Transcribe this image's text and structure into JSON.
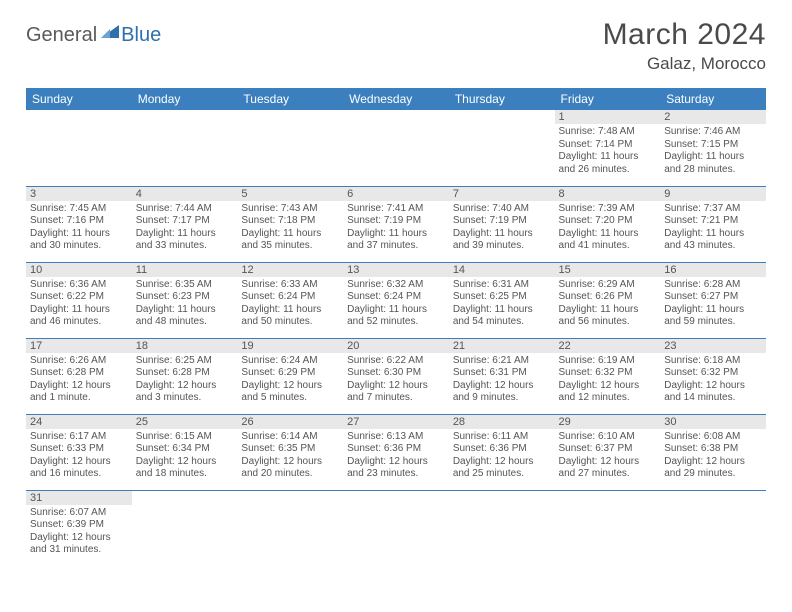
{
  "brand": {
    "part1": "General",
    "part2": "Blue"
  },
  "colors": {
    "header_bg": "#3b7fbf",
    "header_fg": "#ffffff",
    "daynum_bg": "#e8e8e8",
    "rule": "#3b7fbf",
    "body_text": "#555555",
    "logo_blue": "#2f6fab"
  },
  "title": "March 2024",
  "location": "Galaz, Morocco",
  "weekday_labels": [
    "Sunday",
    "Monday",
    "Tuesday",
    "Wednesday",
    "Thursday",
    "Friday",
    "Saturday"
  ],
  "weeks": [
    [
      null,
      null,
      null,
      null,
      null,
      {
        "d": "1",
        "sr": "7:48 AM",
        "ss": "7:14 PM",
        "dl": "11 hours and 26 minutes."
      },
      {
        "d": "2",
        "sr": "7:46 AM",
        "ss": "7:15 PM",
        "dl": "11 hours and 28 minutes."
      }
    ],
    [
      {
        "d": "3",
        "sr": "7:45 AM",
        "ss": "7:16 PM",
        "dl": "11 hours and 30 minutes."
      },
      {
        "d": "4",
        "sr": "7:44 AM",
        "ss": "7:17 PM",
        "dl": "11 hours and 33 minutes."
      },
      {
        "d": "5",
        "sr": "7:43 AM",
        "ss": "7:18 PM",
        "dl": "11 hours and 35 minutes."
      },
      {
        "d": "6",
        "sr": "7:41 AM",
        "ss": "7:19 PM",
        "dl": "11 hours and 37 minutes."
      },
      {
        "d": "7",
        "sr": "7:40 AM",
        "ss": "7:19 PM",
        "dl": "11 hours and 39 minutes."
      },
      {
        "d": "8",
        "sr": "7:39 AM",
        "ss": "7:20 PM",
        "dl": "11 hours and 41 minutes."
      },
      {
        "d": "9",
        "sr": "7:37 AM",
        "ss": "7:21 PM",
        "dl": "11 hours and 43 minutes."
      }
    ],
    [
      {
        "d": "10",
        "sr": "6:36 AM",
        "ss": "6:22 PM",
        "dl": "11 hours and 46 minutes."
      },
      {
        "d": "11",
        "sr": "6:35 AM",
        "ss": "6:23 PM",
        "dl": "11 hours and 48 minutes."
      },
      {
        "d": "12",
        "sr": "6:33 AM",
        "ss": "6:24 PM",
        "dl": "11 hours and 50 minutes."
      },
      {
        "d": "13",
        "sr": "6:32 AM",
        "ss": "6:24 PM",
        "dl": "11 hours and 52 minutes."
      },
      {
        "d": "14",
        "sr": "6:31 AM",
        "ss": "6:25 PM",
        "dl": "11 hours and 54 minutes."
      },
      {
        "d": "15",
        "sr": "6:29 AM",
        "ss": "6:26 PM",
        "dl": "11 hours and 56 minutes."
      },
      {
        "d": "16",
        "sr": "6:28 AM",
        "ss": "6:27 PM",
        "dl": "11 hours and 59 minutes."
      }
    ],
    [
      {
        "d": "17",
        "sr": "6:26 AM",
        "ss": "6:28 PM",
        "dl": "12 hours and 1 minute."
      },
      {
        "d": "18",
        "sr": "6:25 AM",
        "ss": "6:28 PM",
        "dl": "12 hours and 3 minutes."
      },
      {
        "d": "19",
        "sr": "6:24 AM",
        "ss": "6:29 PM",
        "dl": "12 hours and 5 minutes."
      },
      {
        "d": "20",
        "sr": "6:22 AM",
        "ss": "6:30 PM",
        "dl": "12 hours and 7 minutes."
      },
      {
        "d": "21",
        "sr": "6:21 AM",
        "ss": "6:31 PM",
        "dl": "12 hours and 9 minutes."
      },
      {
        "d": "22",
        "sr": "6:19 AM",
        "ss": "6:32 PM",
        "dl": "12 hours and 12 minutes."
      },
      {
        "d": "23",
        "sr": "6:18 AM",
        "ss": "6:32 PM",
        "dl": "12 hours and 14 minutes."
      }
    ],
    [
      {
        "d": "24",
        "sr": "6:17 AM",
        "ss": "6:33 PM",
        "dl": "12 hours and 16 minutes."
      },
      {
        "d": "25",
        "sr": "6:15 AM",
        "ss": "6:34 PM",
        "dl": "12 hours and 18 minutes."
      },
      {
        "d": "26",
        "sr": "6:14 AM",
        "ss": "6:35 PM",
        "dl": "12 hours and 20 minutes."
      },
      {
        "d": "27",
        "sr": "6:13 AM",
        "ss": "6:36 PM",
        "dl": "12 hours and 23 minutes."
      },
      {
        "d": "28",
        "sr": "6:11 AM",
        "ss": "6:36 PM",
        "dl": "12 hours and 25 minutes."
      },
      {
        "d": "29",
        "sr": "6:10 AM",
        "ss": "6:37 PM",
        "dl": "12 hours and 27 minutes."
      },
      {
        "d": "30",
        "sr": "6:08 AM",
        "ss": "6:38 PM",
        "dl": "12 hours and 29 minutes."
      }
    ],
    [
      {
        "d": "31",
        "sr": "6:07 AM",
        "ss": "6:39 PM",
        "dl": "12 hours and 31 minutes."
      },
      null,
      null,
      null,
      null,
      null,
      null
    ]
  ],
  "labels": {
    "sunrise": "Sunrise:",
    "sunset": "Sunset:",
    "daylight": "Daylight:"
  }
}
